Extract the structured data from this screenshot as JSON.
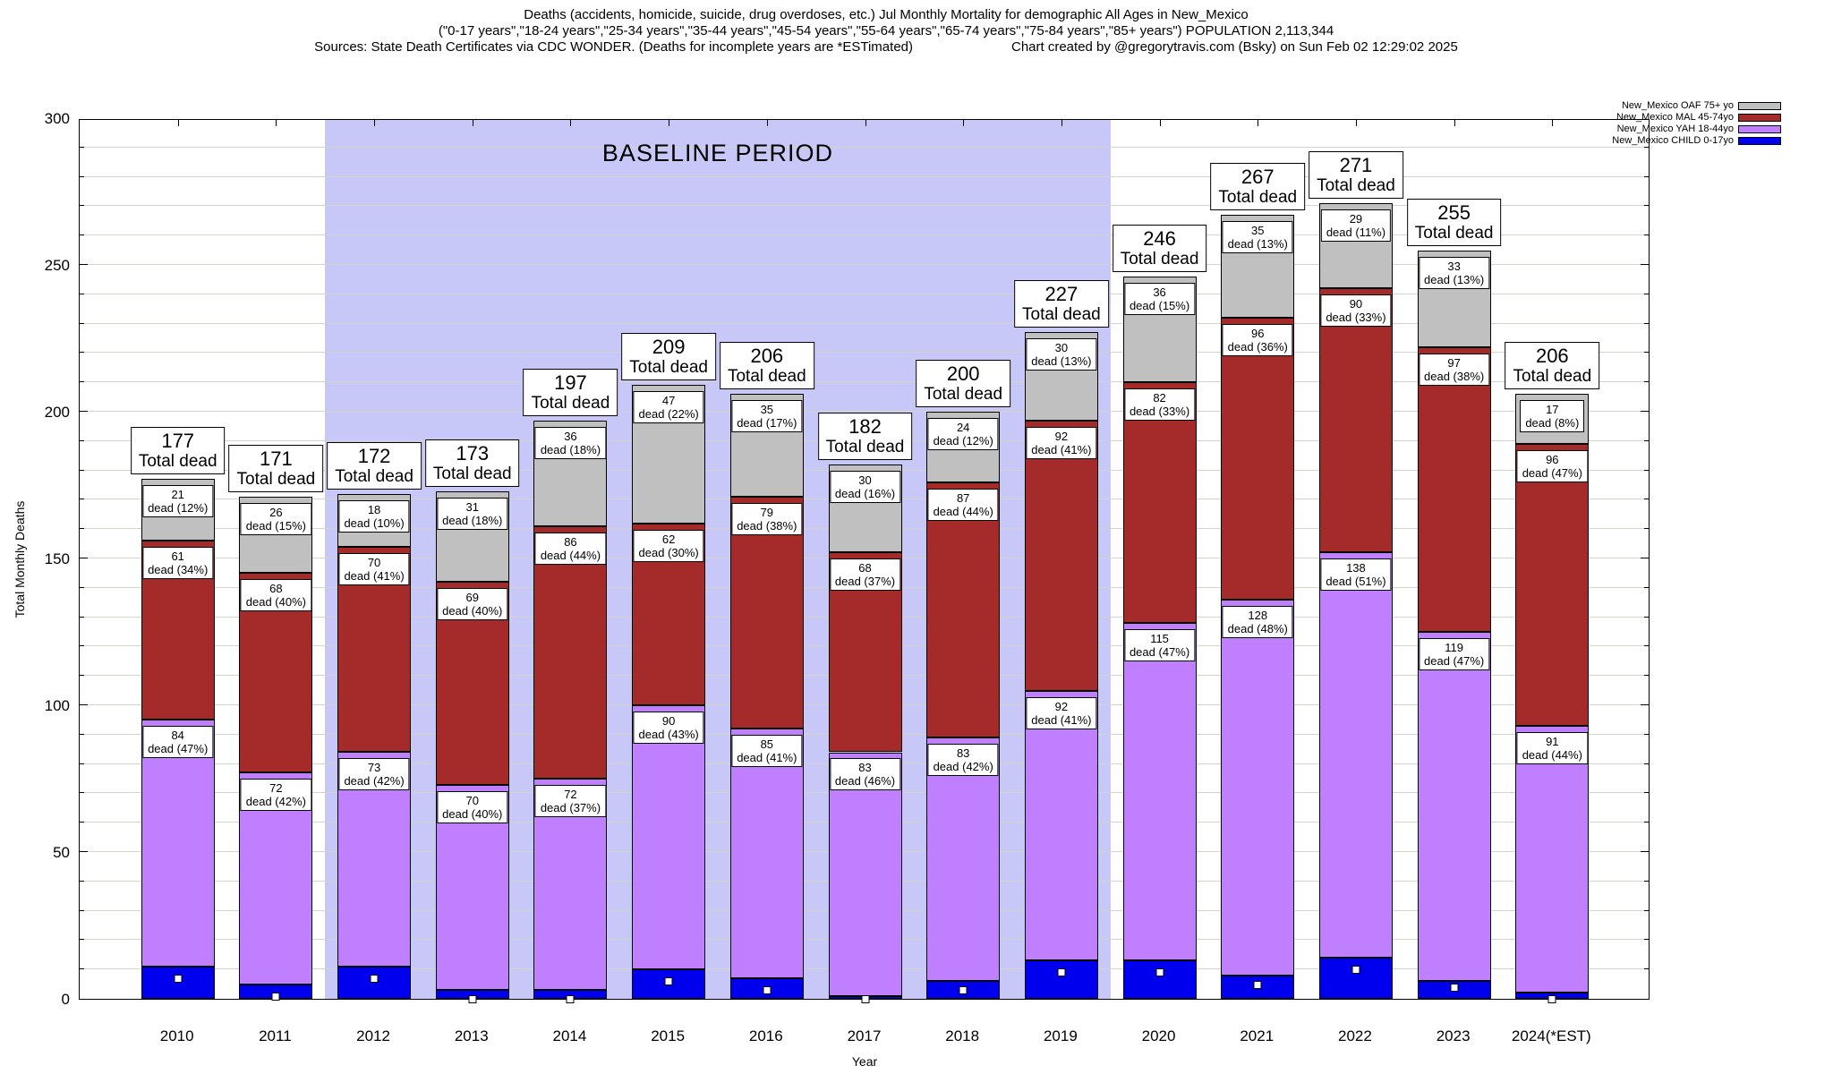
{
  "title": {
    "line1": "Deaths (accidents, homicide, suicide, drug overdoses, etc.) Jul Monthly Mortality for demographic All Ages in New_Mexico",
    "line2": "(\"0-17 years\",\"18-24 years\",\"25-34 years\",\"35-44 years\",\"45-54 years\",\"55-64 years\",\"65-74 years\",\"75-84 years\",\"85+ years\") POPULATION 2,113,344",
    "line3_left": "Sources: State Death Certificates via CDC WONDER. (Deaths for incomplete years are *ESTimated)",
    "line3_right": "Chart created by @gregorytravis.com (Bsky) on Sun Feb 02 12:29:02 2025"
  },
  "chart_data": {
    "type": "bar",
    "stacked": true,
    "title": "Deaths (accidents, homicide, suicide, drug overdoses, etc.) Jul Monthly Mortality for demographic All Ages in New_Mexico",
    "xlabel": "Year",
    "ylabel": "Total Monthly Deaths",
    "ylim": [
      0,
      300
    ],
    "ytick_step": 50,
    "grid_step": 10,
    "grid": true,
    "legend_position": "top-right-outside",
    "categories": [
      "2010",
      "2011",
      "2012",
      "2013",
      "2014",
      "2015",
      "2016",
      "2017",
      "2018",
      "2019",
      "2020",
      "2021",
      "2022",
      "2023",
      "2024(*EST)"
    ],
    "totals": [
      177,
      171,
      172,
      173,
      197,
      209,
      206,
      182,
      200,
      227,
      246,
      267,
      271,
      255,
      206
    ],
    "total_box_word": "Total dead",
    "segment_word": "dead",
    "baseline": {
      "label": "BASELINE PERIOD",
      "from": "2012",
      "to": "2019",
      "color": "#c8c8f8"
    },
    "series": [
      {
        "key": "child",
        "name": "New_Mexico CHILD 0-17yo",
        "color": "#0000ee",
        "values": [
          11,
          5,
          11,
          3,
          3,
          10,
          7,
          1,
          6,
          13,
          13,
          8,
          14,
          6,
          2
        ],
        "pct": null
      },
      {
        "key": "yah",
        "name": "New_Mexico YAH 18-44yo",
        "color": "#c07fff",
        "values": [
          84,
          72,
          73,
          70,
          72,
          90,
          85,
          83,
          83,
          92,
          115,
          128,
          138,
          119,
          91
        ],
        "pct": [
          47,
          42,
          42,
          40,
          37,
          43,
          41,
          46,
          42,
          41,
          47,
          48,
          51,
          47,
          44
        ]
      },
      {
        "key": "mal",
        "name": "New_Mexico MAL 45-74yo",
        "color": "#a52a2a",
        "values": [
          61,
          68,
          70,
          69,
          86,
          62,
          79,
          68,
          87,
          92,
          82,
          96,
          90,
          97,
          96
        ],
        "pct": [
          34,
          40,
          41,
          40,
          44,
          30,
          38,
          37,
          44,
          41,
          33,
          36,
          33,
          38,
          47
        ]
      },
      {
        "key": "oaf",
        "name": "New_Mexico OAF 75+ yo",
        "color": "#c0c0c0",
        "values": [
          21,
          26,
          18,
          31,
          36,
          47,
          35,
          30,
          24,
          30,
          36,
          35,
          29,
          33,
          17
        ],
        "pct": [
          12,
          15,
          10,
          18,
          18,
          22,
          17,
          16,
          12,
          13,
          15,
          13,
          11,
          13,
          8
        ]
      }
    ],
    "marker_values": [
      7,
      1,
      7,
      0,
      0,
      6,
      3,
      0,
      3,
      9,
      9,
      5,
      10,
      4,
      0
    ],
    "legend_order": [
      "oaf",
      "mal",
      "yah",
      "child"
    ]
  }
}
